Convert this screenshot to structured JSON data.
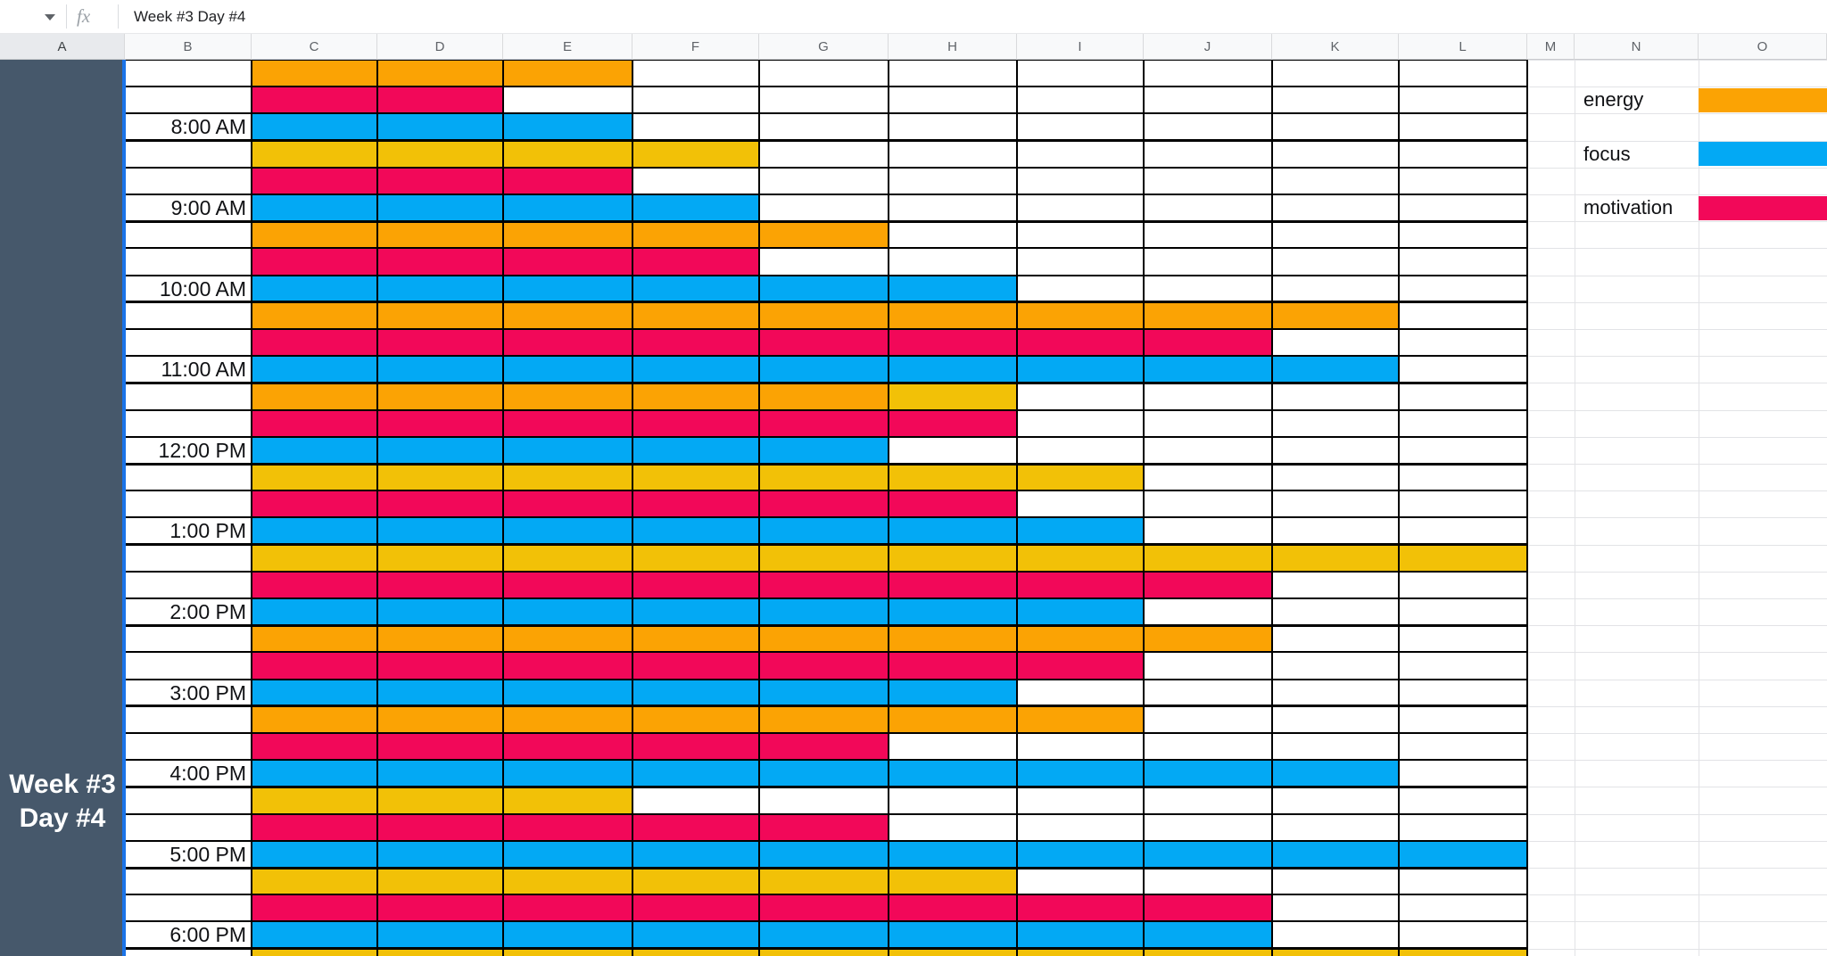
{
  "formula_bar": {
    "fx_label": "fx",
    "cell_value": "Week #3 Day #4"
  },
  "columns": [
    "A",
    "B",
    "C",
    "D",
    "E",
    "F",
    "G",
    "H",
    "I",
    "J",
    "K",
    "L",
    "M",
    "N",
    "O"
  ],
  "merged_cell": {
    "line1": "Week #3",
    "line2": "Day #4"
  },
  "legend": [
    {
      "label": "energy",
      "color_key": "energy_orange"
    },
    {
      "label": "focus",
      "color_key": "focus_blue"
    },
    {
      "label": "motivation",
      "color_key": "motivation_pink"
    }
  ],
  "palette": {
    "energy_orange": "#FBA304",
    "energy_gold": "#F2C107",
    "focus_blue": "#03A9F4",
    "motivation_pink": "#F20859",
    "selected_cell_fill": "#46586B",
    "selection_border_blue": "#1A73E8"
  },
  "chart_data": {
    "type": "bar",
    "orientation": "horizontal",
    "title": "Week #3 Day #4",
    "categories": [
      "8:00 AM",
      "9:00 AM",
      "10:00 AM",
      "11:00 AM",
      "12:00 PM",
      "1:00 PM",
      "2:00 PM",
      "3:00 PM",
      "4:00 PM",
      "5:00 PM",
      "6:00 PM"
    ],
    "row_order": [
      "energy",
      "motivation",
      "focus"
    ],
    "series": [
      {
        "name": "energy",
        "values": [
          3,
          4,
          5,
          9,
          6,
          7,
          10,
          8,
          7,
          3,
          6
        ]
      },
      {
        "name": "motivation",
        "values": [
          2,
          3,
          4,
          8,
          6,
          6,
          8,
          7,
          5,
          5,
          8
        ]
      },
      {
        "name": "focus",
        "values": [
          3,
          4,
          6,
          9,
          5,
          7,
          7,
          6,
          9,
          10,
          8
        ]
      }
    ],
    "value_scale": "filled cells across columns C to L, max 10",
    "energy_cell_shades": {
      "8:00 AM": [
        "orange",
        "orange",
        "orange"
      ],
      "9:00 AM": [
        "gold",
        "gold",
        "gold",
        "gold"
      ],
      "10:00 AM": [
        "orange",
        "orange",
        "orange",
        "orange",
        "orange"
      ],
      "11:00 AM": [
        "orange",
        "orange",
        "orange",
        "orange",
        "orange",
        "orange",
        "orange",
        "orange",
        "orange"
      ],
      "12:00 PM": [
        "orange",
        "orange",
        "orange",
        "orange",
        "orange",
        "gold"
      ],
      "1:00 PM": [
        "gold",
        "gold",
        "gold",
        "gold",
        "gold",
        "gold",
        "gold"
      ],
      "2:00 PM": [
        "gold",
        "gold",
        "gold",
        "gold",
        "gold",
        "gold",
        "gold",
        "gold",
        "gold",
        "gold"
      ],
      "3:00 PM": [
        "orange",
        "orange",
        "orange",
        "orange",
        "orange",
        "orange",
        "orange",
        "orange"
      ],
      "4:00 PM": [
        "orange",
        "orange",
        "orange",
        "orange",
        "orange",
        "orange",
        "orange"
      ],
      "5:00 PM": [
        "gold",
        "gold",
        "gold"
      ],
      "6:00 PM": [
        "gold",
        "gold",
        "gold",
        "gold",
        "gold",
        "gold"
      ]
    },
    "partial_bottom_row": {
      "series": "energy",
      "shade": "gold",
      "value": 10
    }
  }
}
